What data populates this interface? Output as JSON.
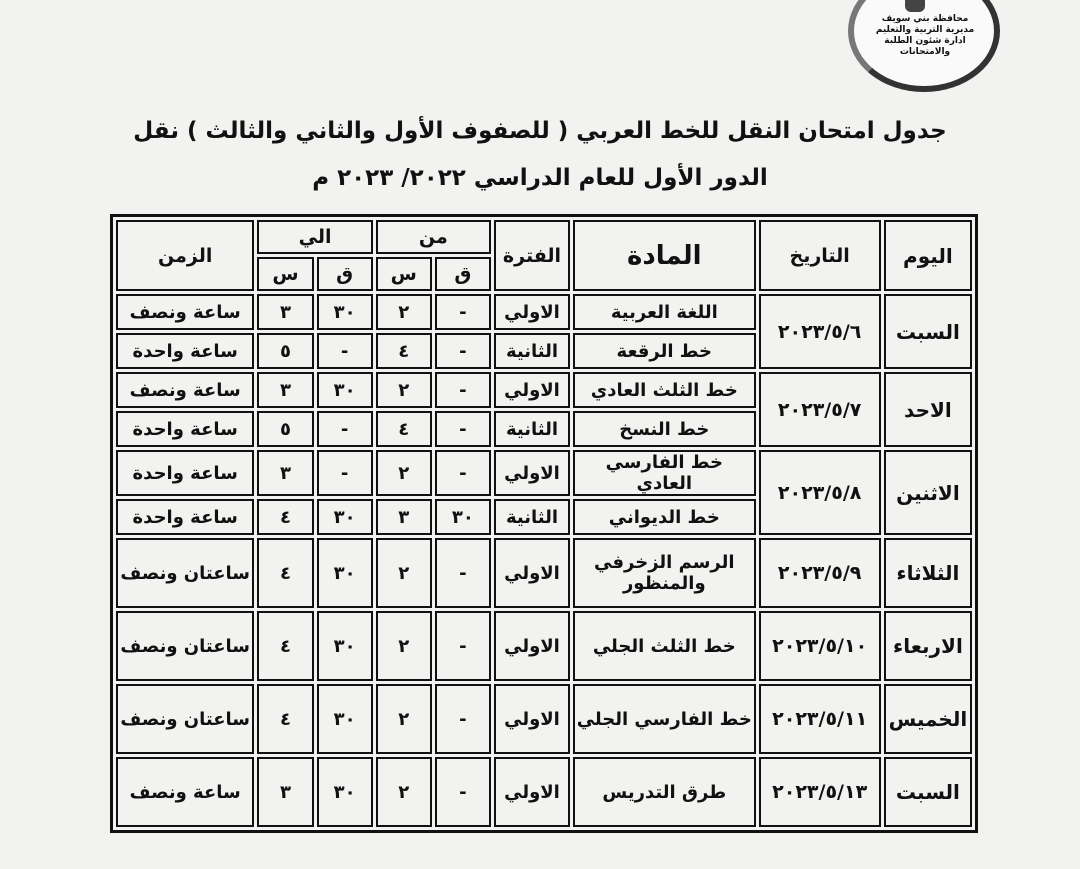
{
  "logo": {
    "lines": [
      "محافظة بني سويف",
      "مديرية التربية والتعليم",
      "ادارة شئون الطلبة والامتحانات"
    ]
  },
  "title": {
    "line1": "جدول امتحان النقل للخط العربي ( للصفوف الأول والثاني والثالث ) نقل",
    "line2": "الدور الأول للعام الدراسي ٢٠٢٢/ ٢٠٢٣ م"
  },
  "headers": {
    "day": "اليوم",
    "date": "التاريخ",
    "subject": "المادة",
    "period": "الفترة",
    "from": "من",
    "to": "الي",
    "minute": "ق",
    "hour": "س",
    "duration": "الزمن"
  },
  "days": [
    {
      "day": "السبت",
      "date": "٢٠٢٣/٥/٦",
      "rows": [
        {
          "subject": "اللغة العربية",
          "period": "الاولي",
          "from_m": "-",
          "from_h": "٢",
          "to_m": "٣٠",
          "to_h": "٣",
          "duration": "ساعة ونصف"
        },
        {
          "subject": "خط الرقعة",
          "period": "الثانية",
          "from_m": "-",
          "from_h": "٤",
          "to_m": "-",
          "to_h": "٥",
          "duration": "ساعة واحدة"
        }
      ]
    },
    {
      "day": "الاحد",
      "date": "٢٠٢٣/٥/٧",
      "rows": [
        {
          "subject": "خط الثلث العادي",
          "period": "الاولي",
          "from_m": "-",
          "from_h": "٢",
          "to_m": "٣٠",
          "to_h": "٣",
          "duration": "ساعة ونصف"
        },
        {
          "subject": "خط النسخ",
          "period": "الثانية",
          "from_m": "-",
          "from_h": "٤",
          "to_m": "-",
          "to_h": "٥",
          "duration": "ساعة واحدة"
        }
      ]
    },
    {
      "day": "الاثنين",
      "date": "٢٠٢٣/٥/٨",
      "rows": [
        {
          "subject": "خط الفارسي العادي",
          "period": "الاولي",
          "from_m": "-",
          "from_h": "٢",
          "to_m": "-",
          "to_h": "٣",
          "duration": "ساعة واحدة"
        },
        {
          "subject": "خط الديواني",
          "period": "الثانية",
          "from_m": "٣٠",
          "from_h": "٣",
          "to_m": "٣٠",
          "to_h": "٤",
          "duration": "ساعة واحدة"
        }
      ]
    },
    {
      "day": "الثلاثاء",
      "date": "٢٠٢٣/٥/٩",
      "rows": [
        {
          "subject": "الرسم الزخرفي والمنظور",
          "period": "الاولي",
          "from_m": "-",
          "from_h": "٢",
          "to_m": "٣٠",
          "to_h": "٤",
          "duration": "ساعتان ونصف"
        }
      ]
    },
    {
      "day": "الاربعاء",
      "date": "٢٠٢٣/٥/١٠",
      "rows": [
        {
          "subject": "خط الثلث الجلي",
          "period": "الاولي",
          "from_m": "-",
          "from_h": "٢",
          "to_m": "٣٠",
          "to_h": "٤",
          "duration": "ساعتان ونصف"
        }
      ]
    },
    {
      "day": "الخميس",
      "date": "٢٠٢٣/٥/١١",
      "rows": [
        {
          "subject": "خط الفارسي الجلي",
          "period": "الاولي",
          "from_m": "-",
          "from_h": "٢",
          "to_m": "٣٠",
          "to_h": "٤",
          "duration": "ساعتان ونصف"
        }
      ]
    },
    {
      "day": "السبت",
      "date": "٢٠٢٣/٥/١٣",
      "rows": [
        {
          "subject": "طرق التدريس",
          "period": "الاولي",
          "from_m": "-",
          "from_h": "٢",
          "to_m": "٣٠",
          "to_h": "٣",
          "duration": "ساعة ونصف"
        }
      ]
    }
  ]
}
